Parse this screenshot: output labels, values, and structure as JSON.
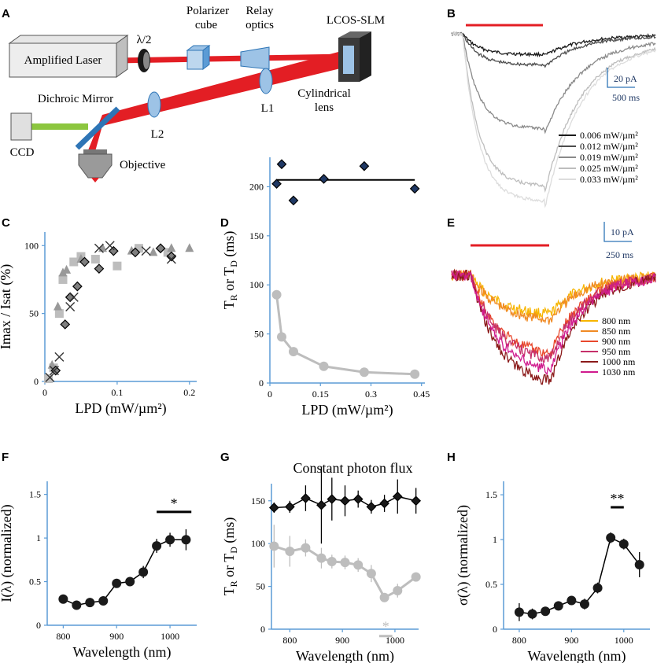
{
  "panel_letters": [
    "A",
    "B",
    "C",
    "D",
    "E",
    "F",
    "G",
    "H"
  ],
  "colors": {
    "beam": "#e31e24",
    "green_beam": "#8cc63f",
    "axis": "#5b9bd5",
    "stim_bar": "#e31e24",
    "dark_marker": "#1a1a1a",
    "gray_marker": "#bdbdbd",
    "diamond_fill": "#1f3864",
    "scale_text": "#1f3864",
    "title_g": "#6b0f0f"
  },
  "setup": {
    "laser": "Amplified Laser",
    "halfwave": "λ/2",
    "polarizer_l1": "Polarizer",
    "polarizer_l2": "cube",
    "relay_l1": "Relay",
    "relay_l2": "optics",
    "slm": "LCOS-SLM",
    "dichroic": "Dichroic Mirror",
    "cyl_l1": "Cylindrical",
    "cyl_l2": "lens",
    "l1": "L1",
    "l2": "L2",
    "ccd": "CCD",
    "objective": "Objective"
  },
  "panelB": {
    "scale_current": "20 pA",
    "scale_time": "500 ms",
    "legend": [
      {
        "label": "0.006 mW/µm²",
        "color": "#1a1a1a",
        "level": 0.12
      },
      {
        "label": "0.012 mW/µm²",
        "color": "#4d4d4d",
        "level": 0.18
      },
      {
        "label": "0.019 mW/µm²",
        "color": "#8a8a8a",
        "level": 0.55
      },
      {
        "label": "0.025 mW/µm²",
        "color": "#bdbdbd",
        "level": 0.88
      },
      {
        "label": "0.033 mW/µm²",
        "color": "#dcdcdc",
        "level": 0.97
      }
    ]
  },
  "panelE": {
    "scale_current": "10 pA",
    "scale_time": "250 ms",
    "legend": [
      {
        "label": "800 nm",
        "color": "#f7b500",
        "level": 0.35
      },
      {
        "label": "850 nm",
        "color": "#f08a24",
        "level": 0.4
      },
      {
        "label": "900 nm",
        "color": "#e8482d",
        "level": 0.7
      },
      {
        "label": "950 nm",
        "color": "#c6306a",
        "level": 0.75
      },
      {
        "label": "1000 nm",
        "color": "#8b1a1a",
        "level": 0.95
      },
      {
        "label": "1030 nm",
        "color": "#d01b8e",
        "level": 0.85
      }
    ]
  },
  "chart_data": [
    {
      "panel": "C",
      "type": "scatter",
      "xlabel": "LPD (mW/µm²)",
      "ylabel": "Imax / Isat (%)",
      "xlim": [
        0,
        0.21
      ],
      "ylim": [
        0,
        110
      ],
      "xticks": [
        "0",
        "0.1",
        "0.2"
      ],
      "xtick_values": [
        0,
        0.1,
        0.2
      ],
      "yticks": [
        "0",
        "50",
        "100"
      ],
      "ytick_values": [
        0,
        50,
        100
      ],
      "series": [
        {
          "name": "square",
          "marker": "square",
          "color": "#bdbdbd",
          "x": [
            0.005,
            0.012,
            0.02,
            0.025,
            0.04,
            0.05,
            0.07,
            0.1,
            0.13,
            0.17
          ],
          "y": [
            2,
            10,
            50,
            75,
            88,
            92,
            90,
            85,
            98,
            95
          ]
        },
        {
          "name": "triangle",
          "marker": "triangle",
          "color": "#999999",
          "x": [
            0.01,
            0.018,
            0.025,
            0.03,
            0.05,
            0.08,
            0.12,
            0.15,
            0.175,
            0.2
          ],
          "y": [
            12,
            55,
            80,
            82,
            90,
            98,
            96,
            95,
            98,
            98
          ]
        },
        {
          "name": "diamond",
          "marker": "diamond",
          "color": "#7f7f7f",
          "x": [
            0.015,
            0.028,
            0.035,
            0.045,
            0.055,
            0.075,
            0.095,
            0.125,
            0.16,
            0.175
          ],
          "y": [
            8,
            42,
            62,
            70,
            88,
            83,
            96,
            95,
            98,
            92
          ]
        },
        {
          "name": "cross",
          "marker": "cross",
          "color": "#333333",
          "x": [
            0.007,
            0.013,
            0.02,
            0.035,
            0.04,
            0.075,
            0.09,
            0.14,
            0.175
          ],
          "y": [
            3,
            8,
            18,
            55,
            62,
            98,
            100,
            96,
            90
          ]
        }
      ]
    },
    {
      "panel": "D",
      "type": "line",
      "xlabel": "LPD (mW/µm²)",
      "ylabel": "TR or TD (ms)",
      "ylabel_main": "T",
      "ylabel_sub1": "R",
      "ylabel_or": " or T",
      "ylabel_sub2": "D",
      "ylabel_unit": " (ms)",
      "xlim": [
        0,
        0.46
      ],
      "ylim": [
        0,
        230
      ],
      "xticks": [
        "0",
        "0.15",
        "0.3",
        "0.45"
      ],
      "xtick_values": [
        0,
        0.15,
        0.3,
        0.45
      ],
      "yticks": [
        "0",
        "50",
        "100",
        "150",
        "200"
      ],
      "ytick_values": [
        0,
        50,
        100,
        150,
        200
      ],
      "series": [
        {
          "name": "TD",
          "marker": "diamond",
          "color": "#1f3864",
          "x": [
            0.02,
            0.035,
            0.07,
            0.16,
            0.28,
            0.43
          ],
          "y": [
            203,
            223,
            186,
            208,
            221,
            198
          ],
          "fit": [
            207,
            207
          ]
        },
        {
          "name": "TR",
          "marker": "circle",
          "color": "#bdbdbd",
          "x": [
            0.02,
            0.035,
            0.07,
            0.16,
            0.28,
            0.43
          ],
          "y": [
            90,
            47,
            32,
            17,
            11,
            9
          ]
        }
      ]
    },
    {
      "panel": "F",
      "type": "line",
      "xlabel": "Wavelength (nm)",
      "ylabel": "I(λ) (normalized)",
      "xlim": [
        770,
        1050
      ],
      "ylim": [
        0,
        1.65
      ],
      "xticks": [
        "800",
        "900",
        "1000"
      ],
      "xtick_values": [
        800,
        900,
        1000
      ],
      "yticks": [
        "0",
        "0.5",
        "1",
        "1.5"
      ],
      "ytick_values": [
        0,
        0.5,
        1,
        1.5
      ],
      "significance": {
        "label": "*",
        "x_from": 975,
        "x_to": 1040,
        "y": 1.3
      },
      "series": [
        {
          "name": "I",
          "color": "#1a1a1a",
          "x": [
            800,
            825,
            850,
            875,
            900,
            925,
            950,
            975,
            1000,
            1030
          ],
          "y": [
            0.3,
            0.23,
            0.26,
            0.28,
            0.48,
            0.5,
            0.61,
            0.91,
            0.98,
            0.98
          ],
          "err": [
            0.04,
            0.04,
            0.04,
            0.04,
            0.05,
            0.05,
            0.07,
            0.08,
            0.08,
            0.12
          ]
        }
      ]
    },
    {
      "panel": "G",
      "type": "line",
      "title": "Constant photon flux",
      "xlabel": "Wavelength (nm)",
      "ylabel": "TR or TD (ms)",
      "ylabel_main": "T",
      "ylabel_sub1": "R",
      "ylabel_or": " or T",
      "ylabel_sub2": "D",
      "ylabel_unit": " (ms)",
      "xlim": [
        765,
        1045
      ],
      "ylim": [
        0,
        170
      ],
      "xticks": [
        "800",
        "900",
        "1000"
      ],
      "xtick_values": [
        800,
        900,
        1000
      ],
      "yticks": [
        "0",
        "50",
        "100",
        "150"
      ],
      "ytick_values": [
        0,
        50,
        100,
        150
      ],
      "significance": {
        "label": "*",
        "x_from": 970,
        "x_to": 995,
        "y": -8
      },
      "series": [
        {
          "name": "TD",
          "marker": "diamond",
          "color": "#1a1a1a",
          "x": [
            770,
            800,
            830,
            860,
            880,
            905,
            930,
            955,
            980,
            1005,
            1040
          ],
          "y": [
            142,
            143,
            153,
            145,
            152,
            150,
            152,
            143,
            147,
            155,
            150
          ],
          "err": [
            6,
            7,
            15,
            45,
            25,
            18,
            10,
            8,
            10,
            20,
            15
          ]
        },
        {
          "name": "TR",
          "marker": "circle",
          "color": "#bdbdbd",
          "x": [
            770,
            800,
            830,
            860,
            880,
            905,
            930,
            955,
            980,
            1005,
            1040
          ],
          "y": [
            97,
            91,
            95,
            83,
            79,
            78,
            75,
            65,
            37,
            45,
            61
          ],
          "err": [
            25,
            18,
            10,
            12,
            8,
            8,
            8,
            10,
            5,
            8,
            5
          ]
        }
      ]
    },
    {
      "panel": "H",
      "type": "line",
      "xlabel": "Wavelength (nm)",
      "ylabel": "σ(λ) (normalized)",
      "xlim": [
        770,
        1050
      ],
      "ylim": [
        0,
        1.65
      ],
      "xticks": [
        "800",
        "900",
        "1000"
      ],
      "xtick_values": [
        800,
        900,
        1000
      ],
      "yticks": [
        "0",
        "0.5",
        "1",
        "1.5"
      ],
      "ytick_values": [
        0,
        0.5,
        1,
        1.5
      ],
      "significance": {
        "label": "**",
        "x_from": 975,
        "x_to": 1000,
        "y": 1.36
      },
      "series": [
        {
          "name": "sigma",
          "color": "#1a1a1a",
          "x": [
            800,
            825,
            850,
            875,
            900,
            925,
            950,
            975,
            1000,
            1030
          ],
          "y": [
            0.19,
            0.17,
            0.2,
            0.26,
            0.32,
            0.28,
            0.46,
            1.02,
            0.95,
            0.72
          ],
          "err": [
            0.1,
            0.06,
            0.05,
            0.05,
            0.05,
            0.06,
            0.06,
            0.06,
            0.06,
            0.14
          ]
        }
      ]
    }
  ]
}
